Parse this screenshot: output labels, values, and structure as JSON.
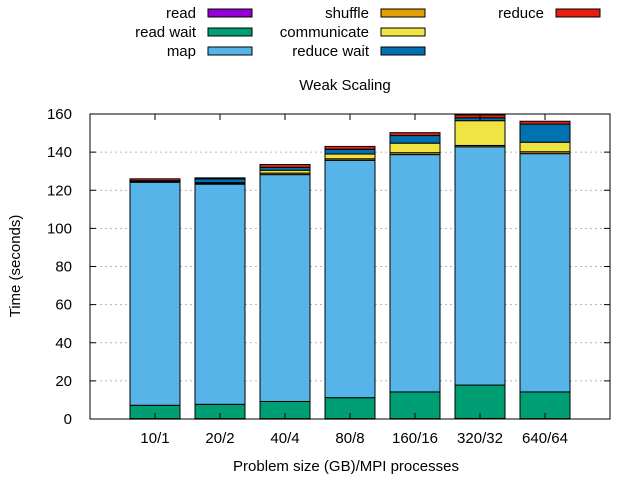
{
  "chart_data": {
    "type": "bar",
    "stacked": true,
    "title": "Weak Scaling",
    "xlabel": "Problem size (GB)/MPI processes",
    "ylabel": "Time (seconds)",
    "ylim": [
      0,
      160
    ],
    "yticks": [
      0,
      20,
      40,
      60,
      80,
      100,
      120,
      140,
      160
    ],
    "grid": "horizontal dotted",
    "legend_position": "top",
    "categories": [
      "10/1",
      "20/2",
      "40/4",
      "80/8",
      "160/16",
      "320/32",
      "640/64"
    ],
    "series": [
      {
        "name": "read",
        "color": "#9400d3",
        "values": [
          0.2,
          0.2,
          0.2,
          0.2,
          0.2,
          0.3,
          0.2
        ]
      },
      {
        "name": "read wait",
        "color": "#009e73",
        "values": [
          7,
          7.5,
          9,
          11,
          14,
          17.5,
          14
        ]
      },
      {
        "name": "map",
        "color": "#56b4e9",
        "values": [
          117,
          115.5,
          119,
          124.5,
          124.5,
          125,
          125
        ]
      },
      {
        "name": "shuffle",
        "color": "#e69f00",
        "values": [
          0.3,
          0.3,
          0.8,
          0.8,
          1,
          0.7,
          1
        ]
      },
      {
        "name": "communicate",
        "color": "#f0e442",
        "values": [
          0.3,
          0.5,
          1.5,
          2.5,
          5,
          13,
          5
        ]
      },
      {
        "name": "reduce wait",
        "color": "#0072b2",
        "values": [
          0.2,
          2,
          1.5,
          2.5,
          4,
          1.5,
          9.5
        ]
      },
      {
        "name": "reduce",
        "color": "#e51e10",
        "values": [
          1,
          0.5,
          1.5,
          1.5,
          1.5,
          1.5,
          1.5
        ]
      }
    ]
  }
}
